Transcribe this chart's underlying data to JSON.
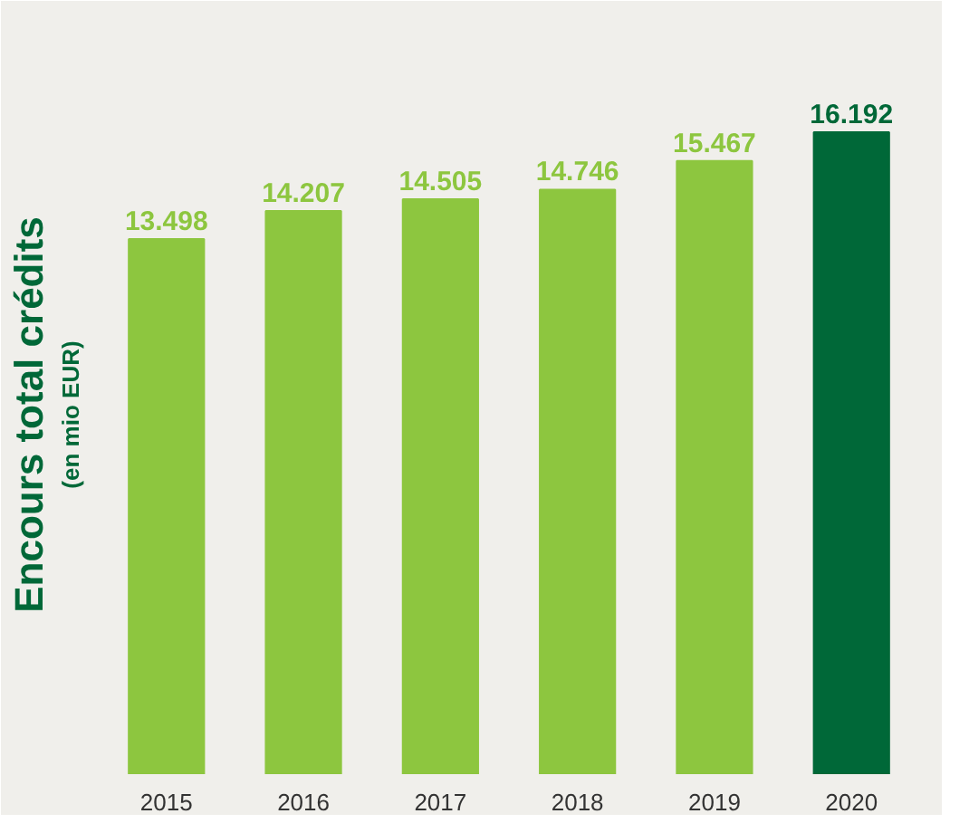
{
  "chart_data": {
    "type": "bar",
    "ylabel": "Encours total crédits",
    "annotations": [
      "(en mio EUR)"
    ],
    "categories": [
      "2015",
      "2016",
      "2017",
      "2018",
      "2019",
      "2020"
    ],
    "values": [
      13498,
      14207,
      14505,
      14746,
      15467,
      16192
    ],
    "value_labels": [
      "13.498",
      "14.207",
      "14.505",
      "14.746",
      "15.467",
      "16.192"
    ],
    "colors": [
      "#8dc63f",
      "#8dc63f",
      "#8dc63f",
      "#8dc63f",
      "#8dc63f",
      "#006838"
    ],
    "grid": false
  }
}
